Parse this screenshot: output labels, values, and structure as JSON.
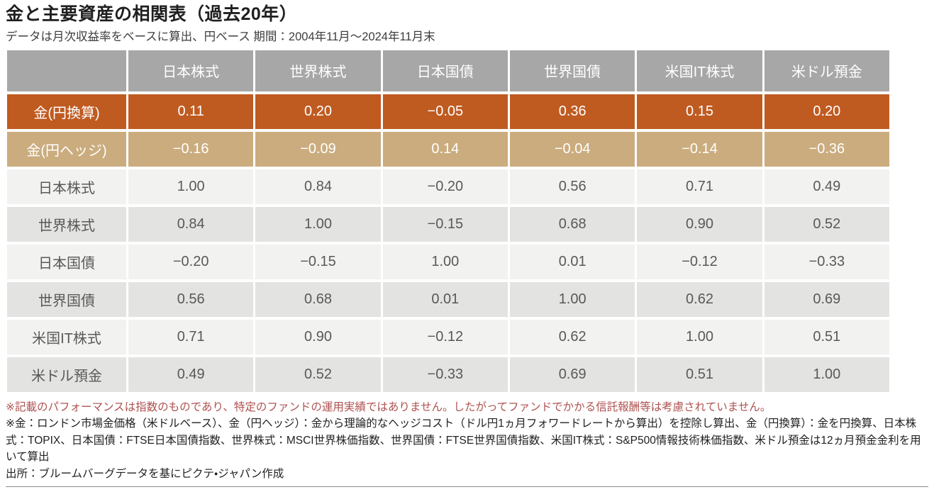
{
  "header": {
    "title": "金と主要資産の相関表（過去20年）",
    "subtitle": "データは月次収益率をベースに算出、円ベース 期間：2004年11月～2024年11月末"
  },
  "colors": {
    "header_bg": "#A7A7A7",
    "gold_yen_bg": "#BF5B21",
    "gold_hedge_bg": "#CBAC7E",
    "row_light_bg": "#F2F2F0",
    "row_dark_bg": "#E3E3E1",
    "note_red": "#AE5250",
    "cell_text": "#595959"
  },
  "table": {
    "corner": "",
    "columns": [
      "日本株式",
      "世界株式",
      "日本国債",
      "世界国債",
      "米国IT株式",
      "米ドル預金"
    ],
    "rows": [
      {
        "label": "金(円換算)",
        "values": [
          "0.11",
          "0.20",
          "−0.05",
          "0.36",
          "0.15",
          "0.20"
        ]
      },
      {
        "label": "金(円ヘッジ)",
        "values": [
          "−0.16",
          "−0.09",
          "0.14",
          "−0.04",
          "−0.14",
          "−0.36"
        ]
      },
      {
        "label": "日本株式",
        "values": [
          "1.00",
          "0.84",
          "−0.20",
          "0.56",
          "0.71",
          "0.49"
        ]
      },
      {
        "label": "世界株式",
        "values": [
          "0.84",
          "1.00",
          "−0.15",
          "0.68",
          "0.90",
          "0.52"
        ]
      },
      {
        "label": "日本国債",
        "values": [
          "−0.20",
          "−0.15",
          "1.00",
          "0.01",
          "−0.12",
          "−0.33"
        ]
      },
      {
        "label": "世界国債",
        "values": [
          "0.56",
          "0.68",
          "0.01",
          "1.00",
          "0.62",
          "0.69"
        ]
      },
      {
        "label": "米国IT株式",
        "values": [
          "0.71",
          "0.90",
          "−0.12",
          "0.62",
          "1.00",
          "0.51"
        ]
      },
      {
        "label": "米ドル預金",
        "values": [
          "0.49",
          "0.52",
          "−0.33",
          "0.69",
          "0.51",
          "1.00"
        ]
      }
    ]
  },
  "notes": {
    "disclaimer": "※記載のパフォーマンスは指数のものであり、特定のファンドの運用実績ではありません。したがってファンドでかかる信託報酬等は考慮されていません。",
    "methodology": "※金：ロンドン市場金価格（米ドルベース）、金（円ヘッジ）：金から理論的なヘッジコスト（ドル円1ヵ月フォワードレートから算出）を控除し算出、金（円換算）：金を円換算、日本株式：TOPIX、日本国債：FTSE日本国債指数、世界株式：MSCI世界株価指数、世界国債：FTSE世界国債指数、米国IT株式：S&P500情報技術株価指数、米ドル預金は12ヵ月預金金利を用いて算出",
    "source": "出所：ブルームバーグデータを基にピクテ・ジャパン作成"
  },
  "chart_data": {
    "type": "table",
    "title": "金と主要資産の相関表（過去20年）",
    "subtitle": "データは月次収益率をベースに算出、円ベース 期間：2004年11月～2024年11月末",
    "columns": [
      "日本株式",
      "世界株式",
      "日本国債",
      "世界国債",
      "米国IT株式",
      "米ドル預金"
    ],
    "rows": [
      {
        "name": "金(円換算)",
        "values": [
          0.11,
          0.2,
          -0.05,
          0.36,
          0.15,
          0.2
        ]
      },
      {
        "name": "金(円ヘッジ)",
        "values": [
          -0.16,
          -0.09,
          0.14,
          -0.04,
          -0.14,
          -0.36
        ]
      },
      {
        "name": "日本株式",
        "values": [
          1.0,
          0.84,
          -0.2,
          0.56,
          0.71,
          0.49
        ]
      },
      {
        "name": "世界株式",
        "values": [
          0.84,
          1.0,
          -0.15,
          0.68,
          0.9,
          0.52
        ]
      },
      {
        "name": "日本国債",
        "values": [
          -0.2,
          -0.15,
          1.0,
          0.01,
          -0.12,
          -0.33
        ]
      },
      {
        "name": "世界国債",
        "values": [
          0.56,
          0.68,
          0.01,
          1.0,
          0.62,
          0.69
        ]
      },
      {
        "name": "米国IT株式",
        "values": [
          0.71,
          0.9,
          -0.12,
          0.62,
          1.0,
          0.51
        ]
      },
      {
        "name": "米ドル預金",
        "values": [
          0.49,
          0.52,
          -0.33,
          0.69,
          0.51,
          1.0
        ]
      }
    ]
  }
}
